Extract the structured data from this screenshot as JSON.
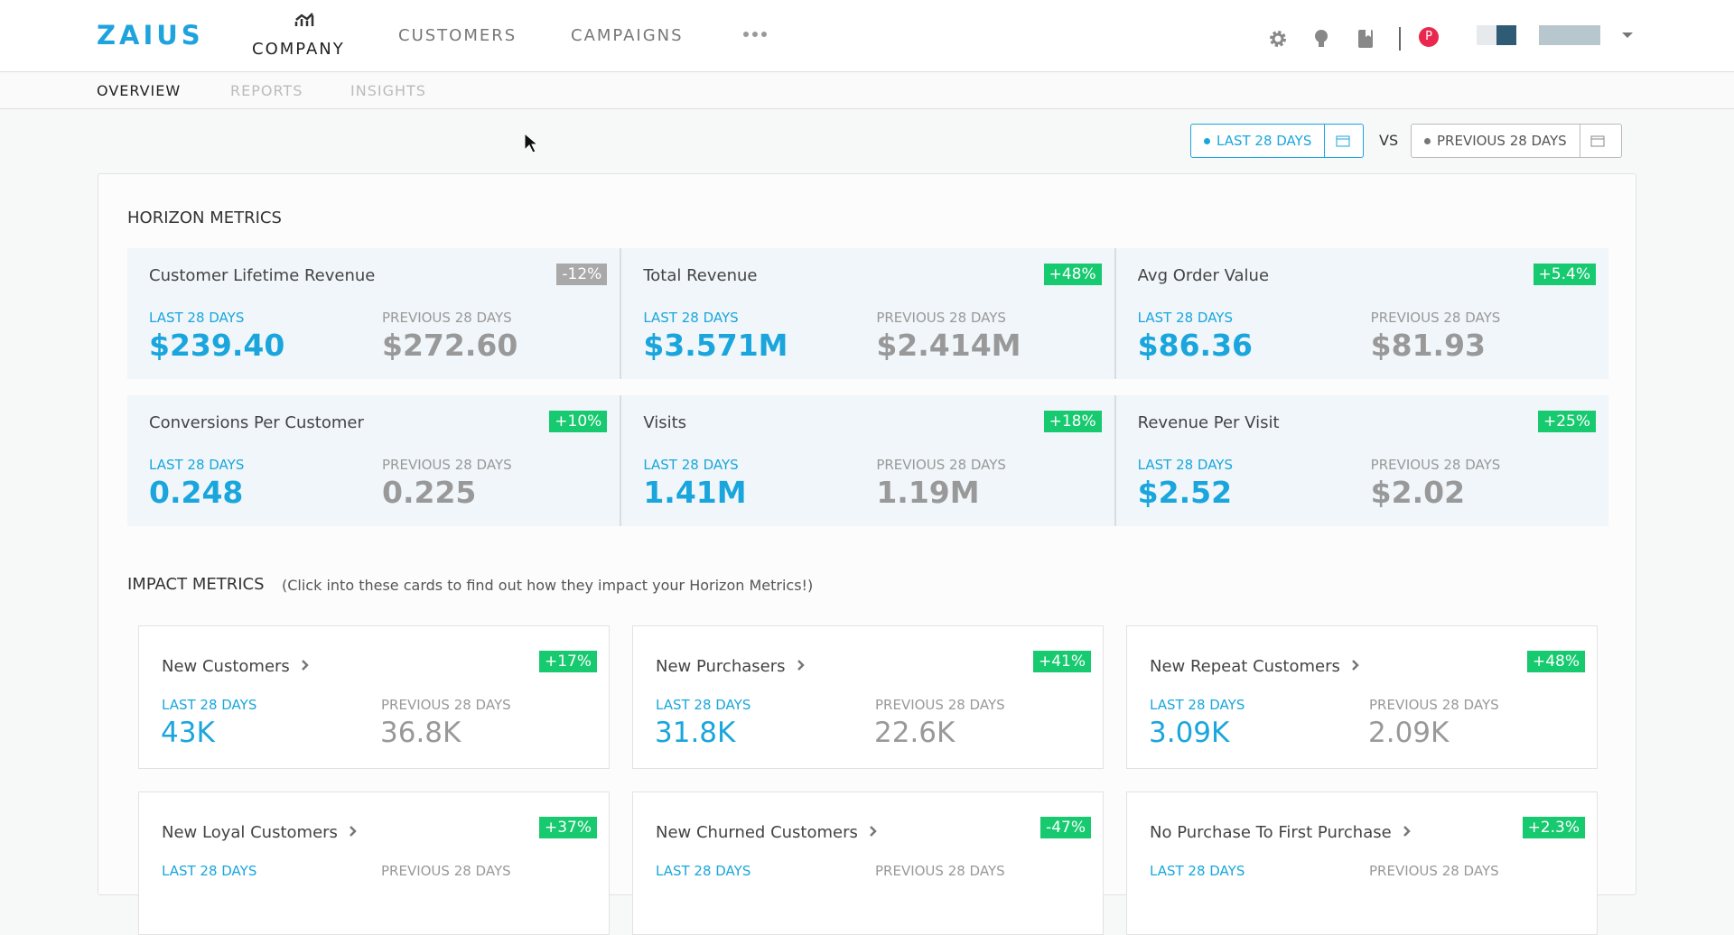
{
  "nav": {
    "logo": "ZAIUS",
    "items": [
      "COMPANY",
      "CUSTOMERS",
      "CAMPAIGNS"
    ],
    "avatar": "P"
  },
  "subnav": [
    "OVERVIEW",
    "REPORTS",
    "INSIGHTS"
  ],
  "date_range": {
    "current": "LAST 28 DAYS",
    "vs": "VS",
    "previous": "PREVIOUS 28 DAYS"
  },
  "horizon": {
    "title": "HORIZON METRICS",
    "cards": [
      {
        "name": "Customer Lifetime Revenue",
        "change": "-12%",
        "color": "#a9a9a9",
        "current_label": "LAST 28 DAYS",
        "current": "$239.40",
        "previous_label": "PREVIOUS 28 DAYS",
        "previous": "$272.60"
      },
      {
        "name": "Total Revenue",
        "change": "+48%",
        "color": "#17c96f",
        "current_label": "LAST 28 DAYS",
        "current": "$3.571M",
        "previous_label": "PREVIOUS 28 DAYS",
        "previous": "$2.414M"
      },
      {
        "name": "Avg Order Value",
        "change": "+5.4%",
        "color": "#17c96f",
        "current_label": "LAST 28 DAYS",
        "current": "$86.36",
        "previous_label": "PREVIOUS 28 DAYS",
        "previous": "$81.93"
      },
      {
        "name": "Conversions Per Customer",
        "change": "+10%",
        "color": "#17c96f",
        "current_label": "LAST 28 DAYS",
        "current": "0.248",
        "previous_label": "PREVIOUS 28 DAYS",
        "previous": "0.225"
      },
      {
        "name": "Visits",
        "change": "+18%",
        "color": "#17c96f",
        "current_label": "LAST 28 DAYS",
        "current": "1.41M",
        "previous_label": "PREVIOUS 28 DAYS",
        "previous": "1.19M"
      },
      {
        "name": "Revenue Per Visit",
        "change": "+25%",
        "color": "#17c96f",
        "current_label": "LAST 28 DAYS",
        "current": "$2.52",
        "previous_label": "PREVIOUS 28 DAYS",
        "previous": "$2.02"
      }
    ]
  },
  "impact": {
    "title": "IMPACT METRICS",
    "subtitle": "(Click into these cards to find out how they impact your Horizon Metrics!)",
    "cards": [
      {
        "name": "New Customers",
        "change": "+17%",
        "color": "#17c96f",
        "current_label": "LAST 28 DAYS",
        "current": "43K",
        "previous_label": "PREVIOUS 28 DAYS",
        "previous": "36.8K"
      },
      {
        "name": "New Purchasers",
        "change": "+41%",
        "color": "#17c96f",
        "current_label": "LAST 28 DAYS",
        "current": "31.8K",
        "previous_label": "PREVIOUS 28 DAYS",
        "previous": "22.6K"
      },
      {
        "name": "New Repeat Customers",
        "change": "+48%",
        "color": "#17c96f",
        "current_label": "LAST 28 DAYS",
        "current": "3.09K",
        "previous_label": "PREVIOUS 28 DAYS",
        "previous": "2.09K"
      },
      {
        "name": "New Loyal Customers",
        "change": "+37%",
        "color": "#17c96f",
        "current_label": "LAST 28 DAYS",
        "previous_label": "PREVIOUS 28 DAYS"
      },
      {
        "name": "New Churned Customers",
        "change": "-47%",
        "color": "#17c96f",
        "current_label": "LAST 28 DAYS",
        "previous_label": "PREVIOUS 28 DAYS"
      },
      {
        "name": "No Purchase To First Purchase",
        "change": "+2.3%",
        "color": "#17c96f",
        "current_label": "LAST 28 DAYS",
        "previous_label": "PREVIOUS 28 DAYS"
      }
    ]
  }
}
